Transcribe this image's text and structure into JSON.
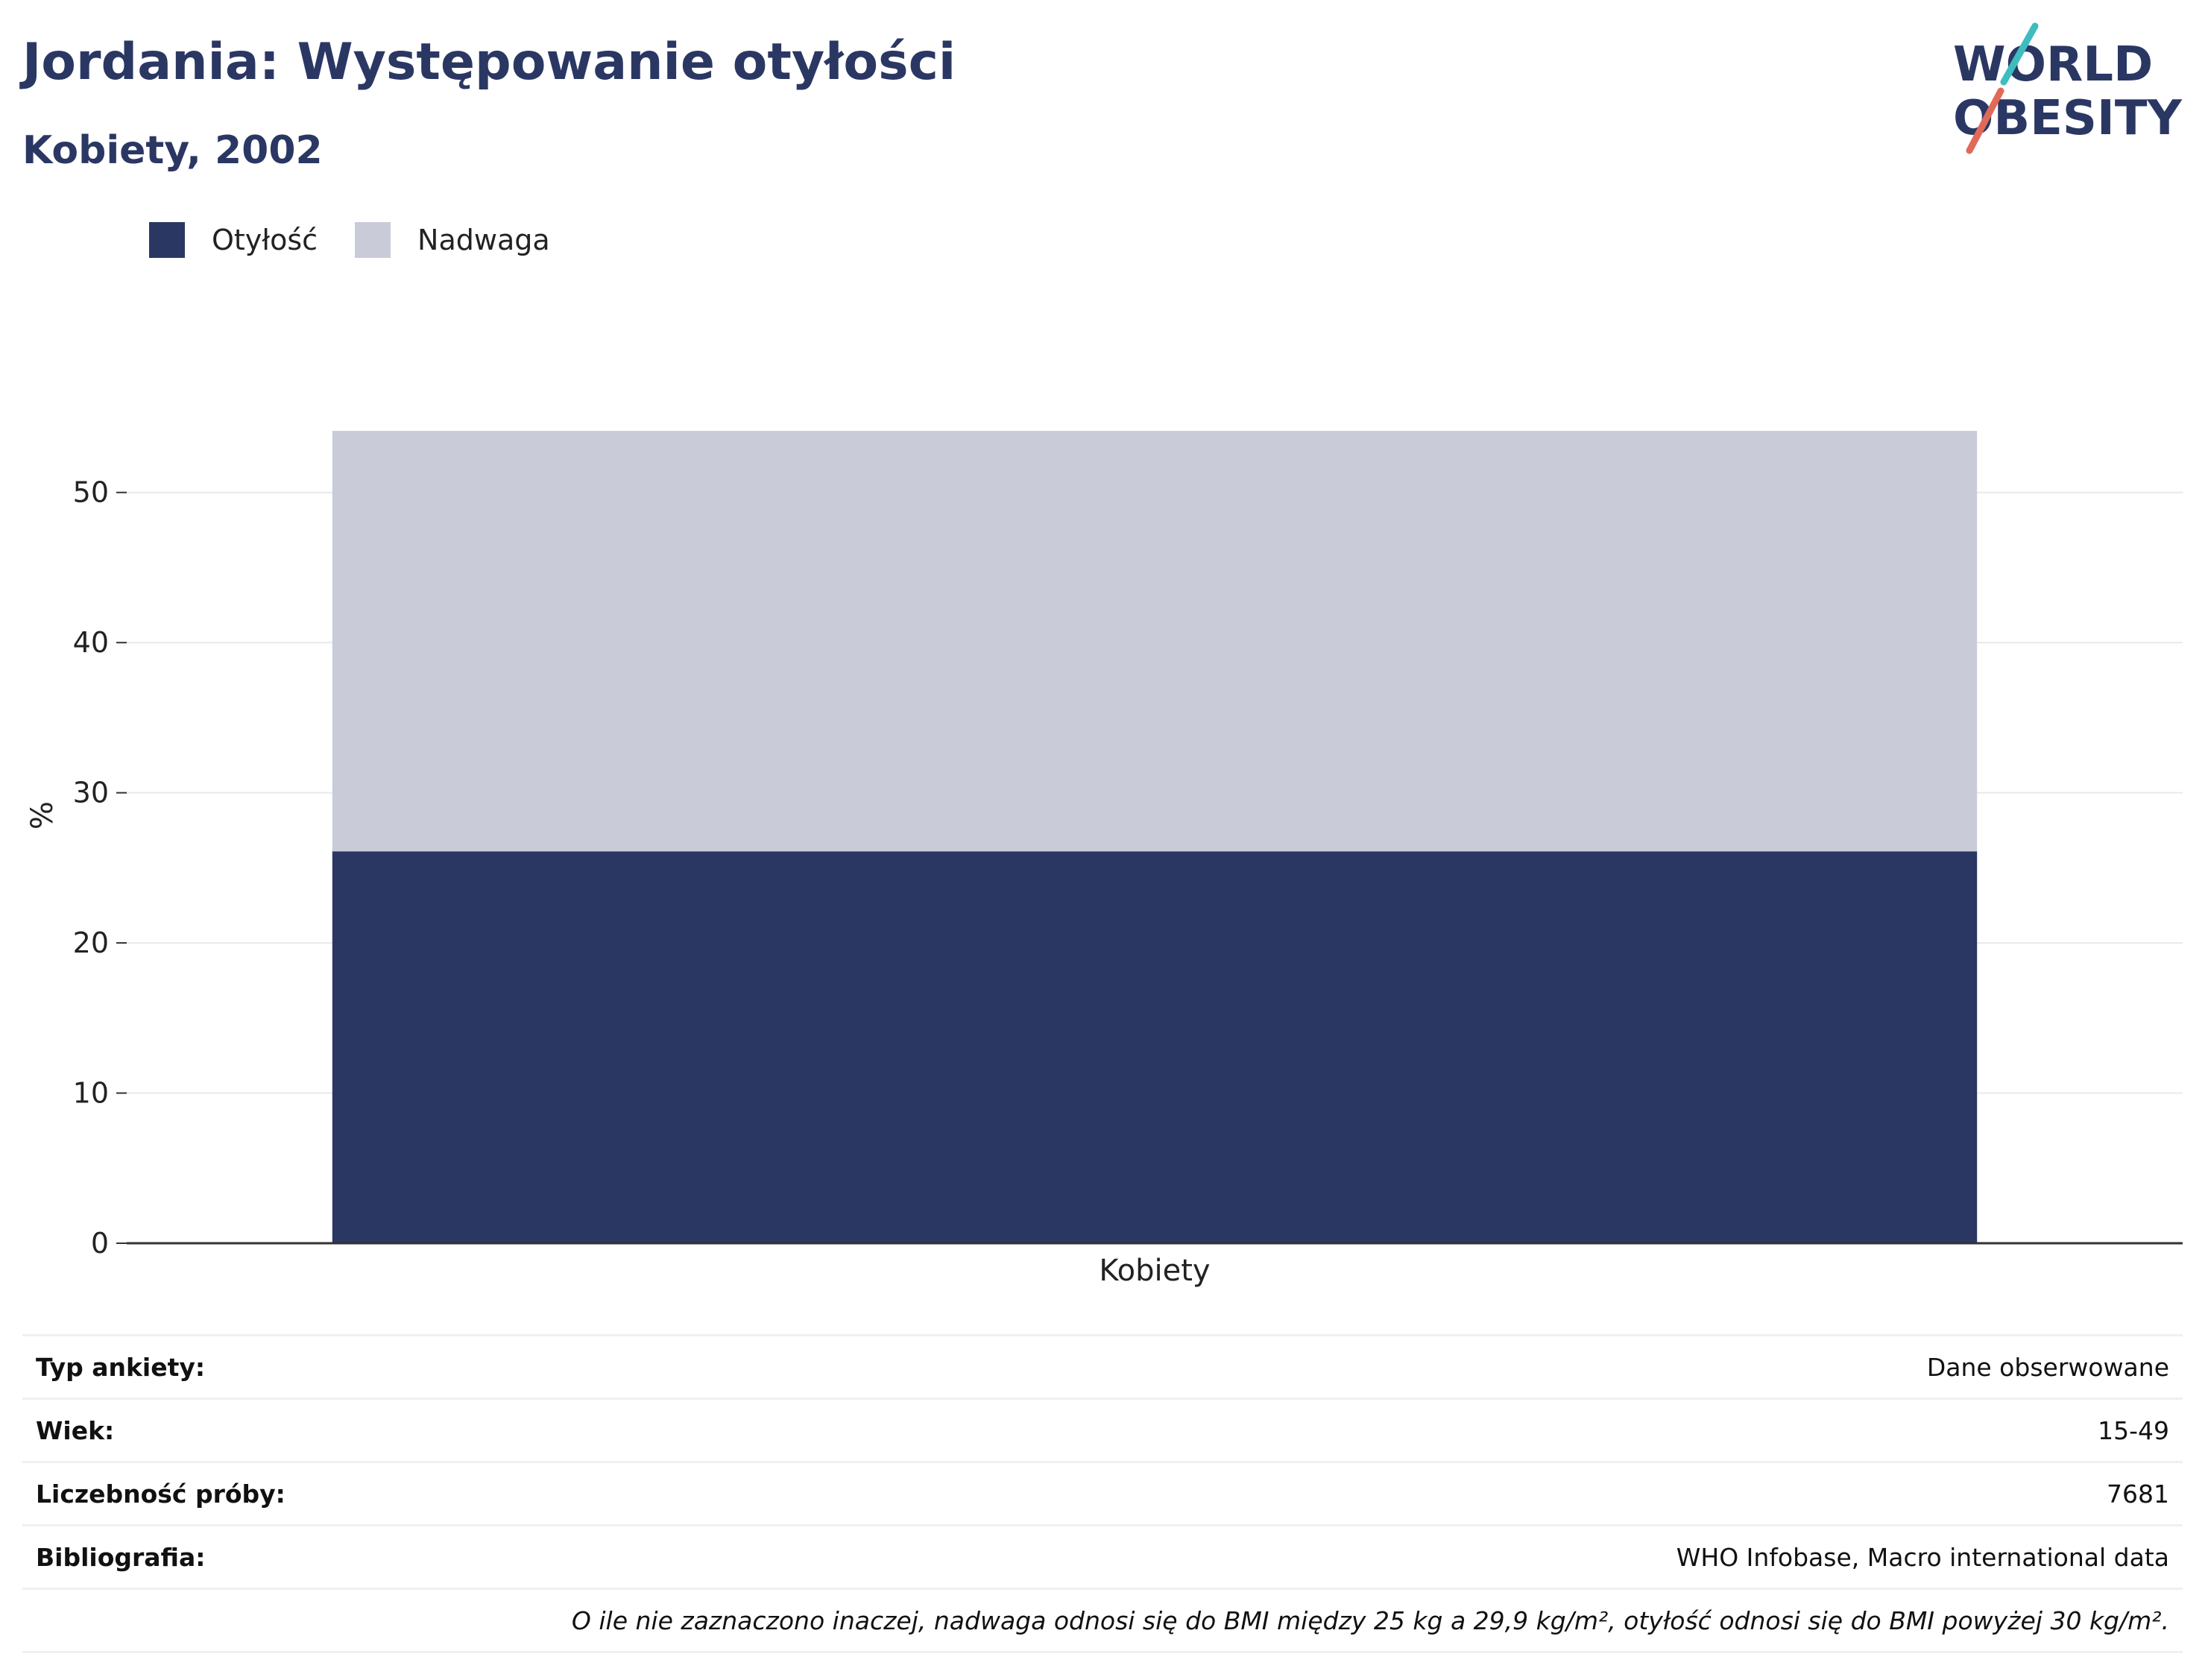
{
  "header": {
    "title": "Jordania: Występowanie otyłości",
    "subtitle": "Kobiety, 2002"
  },
  "logo": {
    "line1": "WORLD",
    "line2": "OBESITY",
    "accent_colors": [
      "#3dbdbf",
      "#e06a5a"
    ]
  },
  "chart_data": {
    "type": "bar",
    "stacked": true,
    "categories": [
      "Kobiety"
    ],
    "series": [
      {
        "name": "Otyłość",
        "values": [
          26.1
        ],
        "color": "#2b3763"
      },
      {
        "name": "Nadwaga",
        "values": [
          28.0
        ],
        "color": "#c9ccd8"
      }
    ],
    "xlabel": "",
    "ylabel": "%",
    "ylim": [
      0,
      55
    ],
    "yticks": [
      0,
      10,
      20,
      30,
      40,
      50
    ],
    "grid": true,
    "legend_position": "top-left"
  },
  "info_table": [
    {
      "label": "Typ ankiety:",
      "value": "Dane obserwowane"
    },
    {
      "label": "Wiek:",
      "value": "15-49"
    },
    {
      "label": "Liczebność próby:",
      "value": "7681"
    },
    {
      "label": "Bibliografia:",
      "value": "WHO Infobase, Macro international data"
    }
  ],
  "footnote": "O ile nie zaznaczono inaczej, nadwaga odnosi się do BMI między 25 kg a 29,9 kg/m², otyłość odnosi się do BMI powyżej 30 kg/m²."
}
